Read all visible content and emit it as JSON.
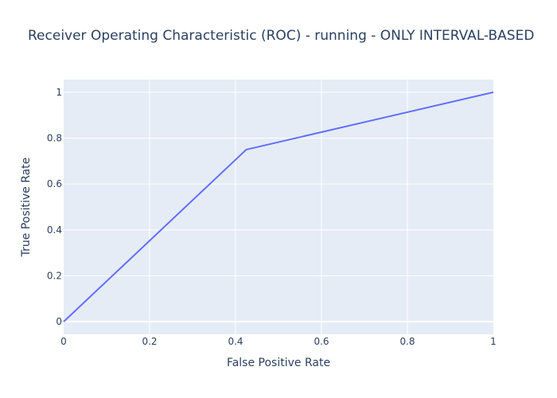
{
  "chart_data": {
    "type": "line",
    "title": "Receiver Operating Characteristic (ROC) - running - ONLY INTERVAL-BASED",
    "xlabel": "False Positive Rate",
    "ylabel": "True Positive Rate",
    "xlim": [
      0,
      1
    ],
    "ylim": [
      -0.055,
      1.055
    ],
    "x_ticks": [
      0,
      0.2,
      0.4,
      0.6,
      0.8,
      1
    ],
    "x_tick_labels": [
      "0",
      "0.2",
      "0.4",
      "0.6",
      "0.8",
      "1"
    ],
    "y_ticks": [
      0,
      0.2,
      0.4,
      0.6,
      0.8,
      1
    ],
    "y_tick_labels": [
      "0",
      "0.2",
      "0.4",
      "0.6",
      "0.8",
      "1"
    ],
    "grid": true,
    "series": [
      {
        "x": [
          0,
          0.425,
          1
        ],
        "y": [
          0,
          0.75,
          1
        ],
        "color": "#636efa"
      }
    ],
    "plot_bg": "#e5ecf6",
    "text_color": "#2a3f5f"
  }
}
